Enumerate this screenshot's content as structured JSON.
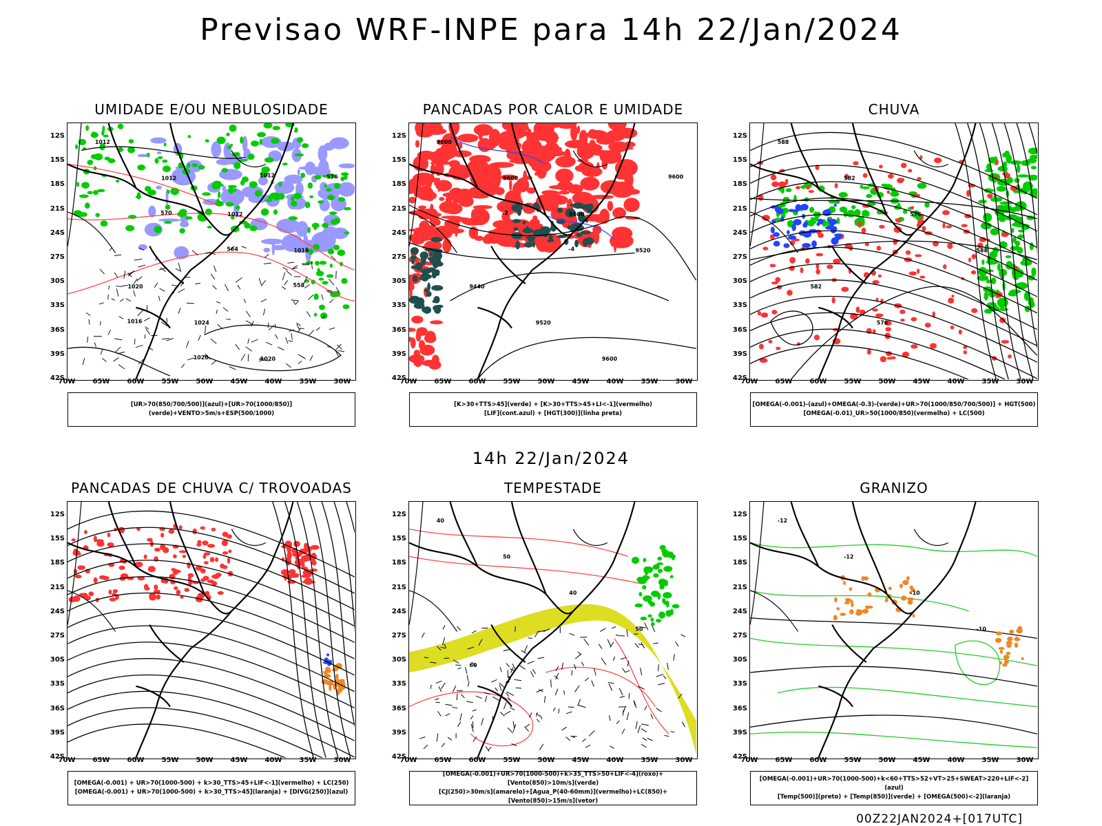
{
  "header": {
    "title": "Previsao WRF-INPE  para 14h 22/Jan/2024"
  },
  "mid_date": "14h 22/Jan/2024",
  "footer": {
    "stamp": "00Z22JAN2024+[017UTC]"
  },
  "axes": {
    "lat_labels": [
      "12S",
      "15S",
      "18S",
      "21S",
      "24S",
      "27S",
      "30S",
      "33S",
      "36S",
      "39S",
      "42S"
    ],
    "lon_labels": [
      "70W",
      "65W",
      "60W",
      "55W",
      "50W",
      "45W",
      "40W",
      "35W",
      "30W"
    ]
  },
  "panels": [
    {
      "title": "UMIDADE E/OU NEBULOSIDADE",
      "legend": [
        "[UR>70(850/700/500)](azul)+[UR>70(1000/850)](verde)+VENTO>5m/s+ESP(500/1000)"
      ],
      "contour_labels": [
        "1012",
        "1012",
        "1012",
        "1016",
        "1020",
        "1024",
        "1020",
        "576",
        "570",
        "564",
        "558",
        "1016",
        "1020",
        "1012"
      ]
    },
    {
      "title": "PANCADAS POR CALOR E UMIDADE",
      "legend": [
        "[K>30+TTS>45](verde) + [K>30+TTS>45+LI<-1](vermelho)",
        "[LIF](cont.azul) + [HGT(300)](linha preta)"
      ],
      "contour_labels": [
        "9600",
        "9600",
        "9600",
        "9520",
        "9440",
        "9520",
        "9600",
        "9600",
        "-2",
        "-4"
      ]
    },
    {
      "title": "CHUVA",
      "legend": [
        "[OMEGA(-0.001)-(azul)+OMEGA(-0.3)-(verde)+UR>70(1000/850/700/500)] + HGT(500)",
        "[OMEGA(-0.01)_UR>50(1000/850)(vermelho) + LC(500)"
      ],
      "contour_labels": [
        "588",
        "582",
        "576",
        "588",
        "582",
        "576"
      ]
    },
    {
      "title": "PANCADAS DE CHUVA C/ TROVOADAS",
      "legend": [
        "[OMEGA(-0.001) + UR>70(1000-500) + k>30_TTS>45+LIF<-1](vermelho) + LC(250)",
        "[OMEGA(-0.001) + UR>70(1000-500) + k>30_TTS>45](laranja) + [DIVG(250)](azul)"
      ],
      "contour_labels": []
    },
    {
      "title": "TEMPESTADE",
      "legend": [
        "[OMEGA(-0.001)+UR>70(1000-500)+k>35_TTS>50+LIF<-4](roxo)+[Vento(850)>10m/s](verde)",
        "[CJ(250)>30m/s](amarelo)+[Agua_P(40-60mm)](vermelho)+LC(850)+[Vento(850)>15m/s](vetor)"
      ],
      "contour_labels": [
        "40",
        "50",
        "40",
        "50",
        "60"
      ]
    },
    {
      "title": "GRANIZO",
      "legend": [
        "[OMEGA(-0.001)+UR>70(1000-500)+k<60+TTS>52+VT>25+SWEAT>220+LIF<-2](azul)",
        "[Temp(500)](preto) + [Temp(850)](verde) + [OMEGA(500)<-2](laranja)"
      ],
      "contour_labels": [
        "-12",
        "-12",
        "-10",
        "-10"
      ]
    }
  ],
  "colors": {
    "humid_high": "#9999ff",
    "humid_low": "#00cc00",
    "storm_red": "#ff3333",
    "teal": "#1f4f4f",
    "jet_yellow": "#dddd22",
    "hail_orange": "#ee8822"
  }
}
